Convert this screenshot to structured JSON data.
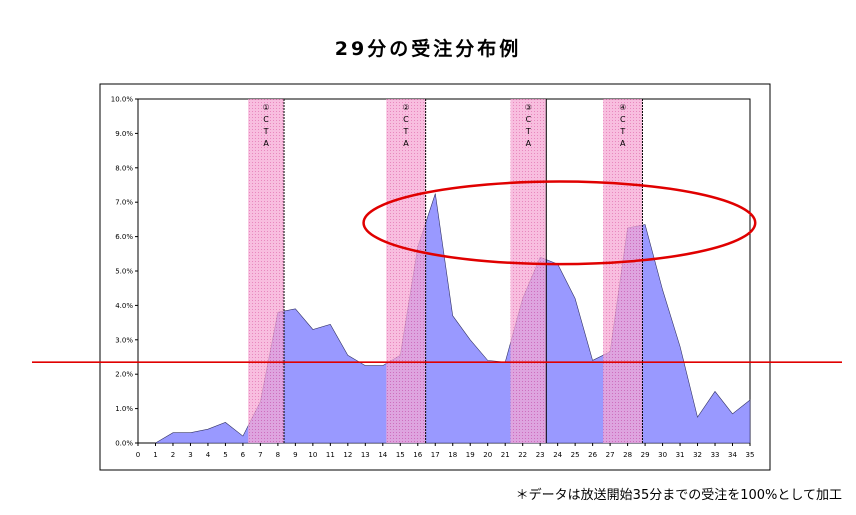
{
  "title": "29分の受注分布例",
  "footnote": "＊データは放送開始35分までの受注を100%として加工",
  "chart_data": {
    "type": "area",
    "x": [
      1,
      2,
      3,
      4,
      5,
      6,
      7,
      8,
      9,
      10,
      11,
      12,
      13,
      14,
      15,
      16,
      17,
      18,
      19,
      20,
      21,
      22,
      23,
      24,
      25,
      26,
      27,
      28,
      29,
      30,
      31,
      32,
      33,
      34,
      35
    ],
    "values": [
      0.0,
      0.3,
      0.3,
      0.4,
      0.6,
      0.2,
      1.2,
      3.8,
      3.9,
      3.3,
      3.45,
      2.55,
      2.25,
      2.25,
      2.55,
      5.7,
      7.25,
      3.7,
      3.0,
      2.4,
      2.35,
      4.2,
      5.4,
      5.2,
      4.2,
      2.4,
      2.65,
      6.25,
      6.35,
      4.45,
      2.8,
      0.75,
      1.5,
      0.85,
      1.25
    ],
    "x_ticks": [
      "0",
      "1",
      "2",
      "3",
      "4",
      "5",
      "6",
      "7",
      "8",
      "9",
      "10",
      "11",
      "12",
      "13",
      "14",
      "15",
      "16",
      "17",
      "18",
      "19",
      "20",
      "21",
      "22",
      "23",
      "24",
      "25",
      "26",
      "27",
      "28",
      "29",
      "30",
      "31",
      "32",
      "33",
      "34",
      "35"
    ],
    "y_ticks": [
      "0.0%",
      "1.0%",
      "2.0%",
      "3.0%",
      "4.0%",
      "5.0%",
      "6.0%",
      "7.0%",
      "8.0%",
      "9.0%",
      "10.0%"
    ],
    "ylim": [
      0,
      10
    ],
    "xlim": [
      0,
      35
    ],
    "area_color": "#9999ff",
    "band_color": "#f07fc0",
    "reference_line_color": "#e00000",
    "ellipse_color": "#e00000",
    "reference_line_value": 2.35,
    "ellipse": {
      "x_range": [
        12.9,
        35.3
      ],
      "y_range": [
        5.2,
        7.6
      ]
    },
    "cta_bands": [
      {
        "label": "①",
        "text": [
          "C",
          "T",
          "A"
        ],
        "x_range": [
          6.3,
          8.35
        ]
      },
      {
        "label": "②",
        "text": [
          "C",
          "T",
          "A"
        ],
        "x_range": [
          14.2,
          16.45
        ]
      },
      {
        "label": "③",
        "text": [
          "C",
          "T",
          "A"
        ],
        "x_range": [
          21.3,
          23.35
        ]
      },
      {
        "label": "④",
        "text": [
          "C",
          "T",
          "A"
        ],
        "x_range": [
          26.6,
          28.85
        ]
      }
    ]
  }
}
